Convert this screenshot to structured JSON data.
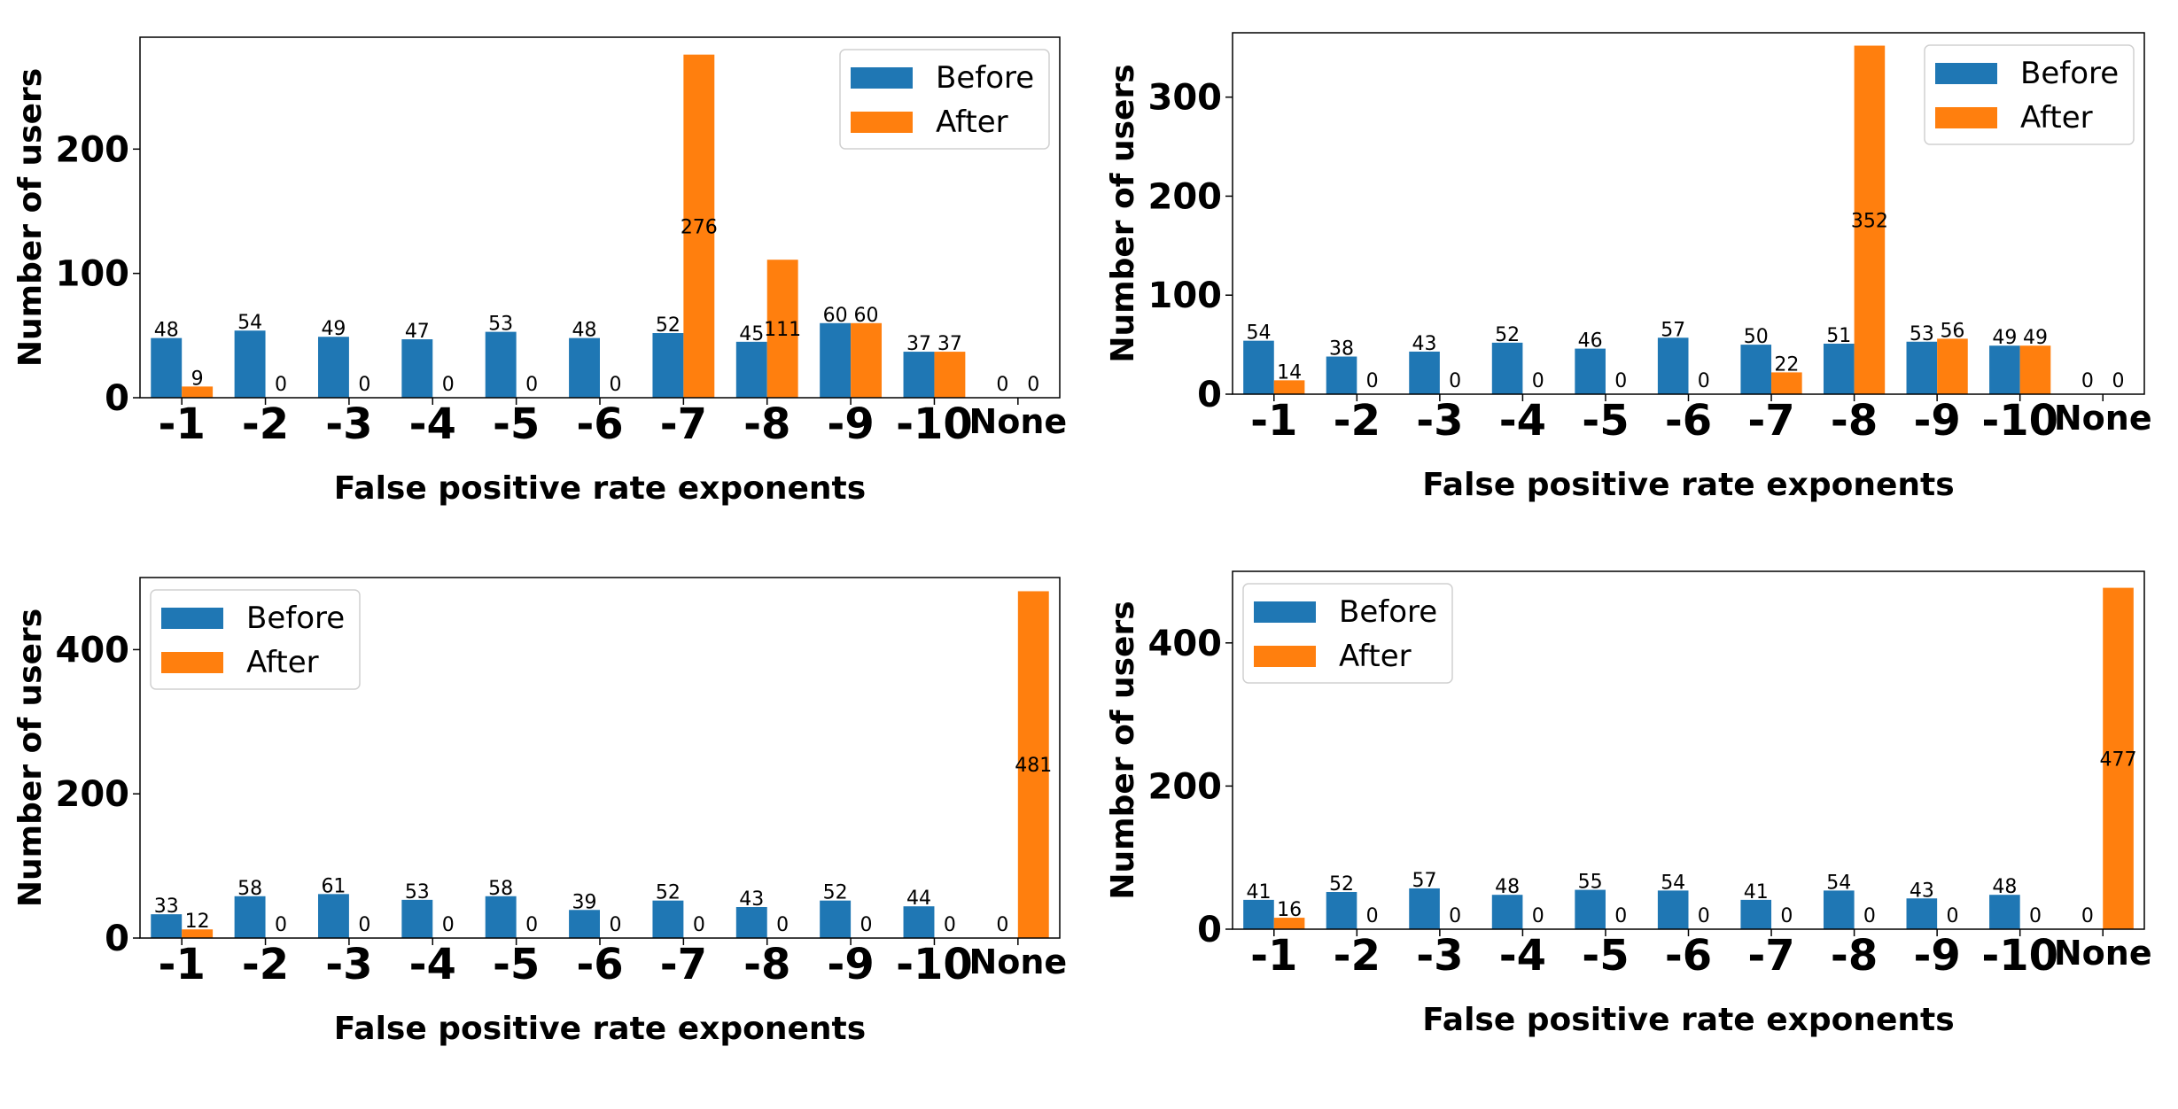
{
  "colors": {
    "before": "#1f77b4",
    "after": "#ff7f0e"
  },
  "chart_data": [
    {
      "type": "bar",
      "xlabel": "False positive rate exponents",
      "ylabel": "Number of users",
      "categories": [
        "-1",
        "-2",
        "-3",
        "-4",
        "-5",
        "-6",
        "-7",
        "-8",
        "-9",
        "-10",
        "None"
      ],
      "ylim": [
        0,
        290
      ],
      "yticks": [
        "0",
        "100",
        "200"
      ],
      "legend_position": "top-right",
      "series": [
        {
          "name": "Before",
          "values": [
            48,
            54,
            49,
            47,
            53,
            48,
            52,
            45,
            60,
            37,
            0
          ],
          "labels": [
            "48",
            "54",
            "49",
            "47",
            "53",
            "48",
            "52",
            "45",
            "60",
            "37",
            "0"
          ]
        },
        {
          "name": "After",
          "values": [
            9,
            0,
            0,
            0,
            0,
            0,
            276,
            111,
            60,
            37,
            0
          ],
          "labels": [
            "9",
            "0",
            "0",
            "0",
            "0",
            "0",
            "276",
            "111",
            "60",
            "37",
            "0"
          ]
        }
      ]
    },
    {
      "type": "bar",
      "xlabel": "False positive rate exponents",
      "ylabel": "Number of users",
      "categories": [
        "-1",
        "-2",
        "-3",
        "-4",
        "-5",
        "-6",
        "-7",
        "-8",
        "-9",
        "-10",
        "None"
      ],
      "ylim": [
        0,
        365
      ],
      "yticks": [
        "0",
        "100",
        "200",
        "300"
      ],
      "legend_position": "top-right",
      "series": [
        {
          "name": "Before",
          "values": [
            54,
            38,
            43,
            52,
            46,
            57,
            50,
            51,
            53,
            49,
            0
          ],
          "labels": [
            "54",
            "38",
            "43",
            "52",
            "46",
            "57",
            "50",
            "51",
            "53",
            "49",
            "0"
          ]
        },
        {
          "name": "After",
          "values": [
            14,
            0,
            0,
            0,
            0,
            0,
            22,
            352,
            56,
            49,
            0
          ],
          "labels": [
            "14",
            "0",
            "0",
            "0",
            "0",
            "0",
            "22",
            "352",
            "56",
            "49",
            "0"
          ]
        }
      ]
    },
    {
      "type": "bar",
      "xlabel": "False positive rate exponents",
      "ylabel": "Number of users",
      "categories": [
        "-1",
        "-2",
        "-3",
        "-4",
        "-5",
        "-6",
        "-7",
        "-8",
        "-9",
        "-10",
        "None"
      ],
      "ylim": [
        0,
        500
      ],
      "yticks": [
        "0",
        "200",
        "400"
      ],
      "legend_position": "top-left",
      "series": [
        {
          "name": "Before",
          "values": [
            33,
            58,
            61,
            53,
            58,
            39,
            52,
            43,
            52,
            44,
            0
          ],
          "labels": [
            "33",
            "58",
            "61",
            "53",
            "58",
            "39",
            "52",
            "43",
            "52",
            "44",
            "0"
          ]
        },
        {
          "name": "After",
          "values": [
            12,
            0,
            0,
            0,
            0,
            0,
            0,
            0,
            0,
            0,
            481
          ],
          "labels": [
            "12",
            "0",
            "0",
            "0",
            "0",
            "0",
            "0",
            "0",
            "0",
            "0",
            "481"
          ]
        }
      ]
    },
    {
      "type": "bar",
      "xlabel": "False positive rate exponents",
      "ylabel": "Number of users",
      "categories": [
        "-1",
        "-2",
        "-3",
        "-4",
        "-5",
        "-6",
        "-7",
        "-8",
        "-9",
        "-10",
        "None"
      ],
      "ylim": [
        0,
        500
      ],
      "yticks": [
        "0",
        "200",
        "400"
      ],
      "legend_position": "top-left",
      "series": [
        {
          "name": "Before",
          "values": [
            41,
            52,
            57,
            48,
            55,
            54,
            41,
            54,
            43,
            48,
            0
          ],
          "labels": [
            "41",
            "52",
            "57",
            "48",
            "55",
            "54",
            "41",
            "54",
            "43",
            "48",
            "0"
          ]
        },
        {
          "name": "After",
          "values": [
            16,
            0,
            0,
            0,
            0,
            0,
            0,
            0,
            0,
            0,
            477
          ],
          "labels": [
            "16",
            "0",
            "0",
            "0",
            "0",
            "0",
            "0",
            "0",
            "0",
            "0",
            "477"
          ]
        }
      ]
    }
  ]
}
